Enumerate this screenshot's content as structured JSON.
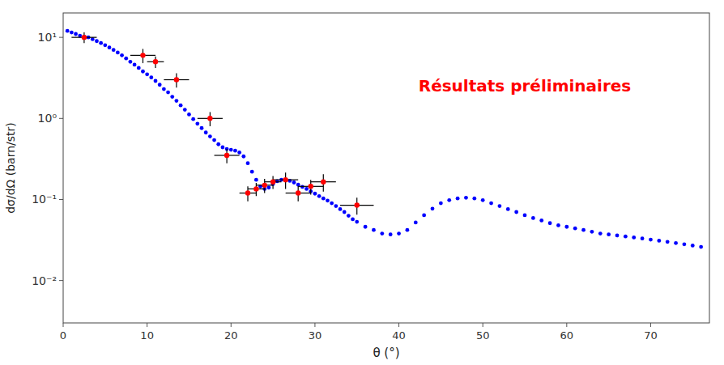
{
  "chart_data": {
    "type": "scatter",
    "xlabel": "θ (°)",
    "ylabel": "dσ/dΩ (barn/str)",
    "log": "y",
    "grid": false,
    "xlim": [
      0,
      77
    ],
    "ylim": [
      0.003,
      20
    ],
    "xticks": [
      0,
      10,
      20,
      30,
      40,
      50,
      60,
      70
    ],
    "yticks": [
      {
        "value": 0.01,
        "label": "10⁻²"
      },
      {
        "value": 0.1,
        "label": "10⁻¹"
      },
      {
        "value": 1,
        "label": "10⁰"
      },
      {
        "value": 10,
        "label": "10¹"
      }
    ],
    "annotations": [
      {
        "text": "Résultats préliminaires",
        "x": 55,
        "y": 2.5,
        "color": "#ff0000"
      }
    ],
    "series": [
      {
        "color": "blue",
        "marker": "circle",
        "x": [
          0.5,
          1.0,
          1.5,
          2.0,
          2.5,
          3.0,
          3.5,
          4.0,
          4.5,
          5.0,
          5.5,
          6.0,
          6.5,
          7.0,
          7.5,
          8.0,
          8.5,
          9.0,
          9.5,
          10.0,
          10.5,
          11.0,
          11.5,
          12.0,
          12.5,
          13.0,
          13.5,
          14.0,
          14.5,
          15.0,
          15.5,
          16.0,
          16.5,
          17.0,
          17.5,
          18.0,
          18.5,
          19.0,
          19.5,
          20.0,
          20.5,
          21.0,
          21.5,
          22.0,
          22.5,
          23.0,
          23.5,
          24.0,
          24.5,
          25.0,
          25.5,
          26.0,
          26.5,
          27.0,
          27.5,
          28.0,
          28.5,
          29.0,
          29.5,
          30.0,
          30.5,
          31.0,
          31.5,
          32.0,
          32.5,
          33.0,
          33.5,
          34.0,
          34.5,
          35.0,
          36.0,
          37.0,
          38.0,
          39.0,
          40.0,
          41.0,
          42.0,
          43.0,
          44.0,
          45.0,
          46.0,
          47.0,
          48.0,
          49.0,
          50.0,
          51.0,
          52.0,
          53.0,
          54.0,
          55.0,
          56.0,
          57.0,
          58.0,
          59.0,
          60.0,
          61.0,
          62.0,
          63.0,
          64.0,
          65.0,
          66.0,
          67.0,
          68.0,
          69.0,
          70.0,
          71.0,
          72.0,
          73.0,
          74.0,
          75.0,
          76.0
        ],
        "values": [
          12.0,
          11.5,
          11.0,
          10.5,
          10.2,
          10.0,
          9.5,
          9.0,
          8.5,
          8.0,
          7.5,
          7.0,
          6.5,
          6.0,
          5.5,
          5.0,
          4.6,
          4.2,
          3.8,
          3.5,
          3.2,
          2.9,
          2.6,
          2.3,
          2.1,
          1.85,
          1.65,
          1.45,
          1.28,
          1.12,
          0.98,
          0.86,
          0.76,
          0.67,
          0.6,
          0.54,
          0.48,
          0.44,
          0.42,
          0.41,
          0.4,
          0.38,
          0.34,
          0.28,
          0.22,
          0.175,
          0.145,
          0.135,
          0.14,
          0.155,
          0.168,
          0.175,
          0.175,
          0.17,
          0.162,
          0.152,
          0.143,
          0.135,
          0.126,
          0.118,
          0.11,
          0.103,
          0.097,
          0.09,
          0.083,
          0.076,
          0.07,
          0.063,
          0.057,
          0.053,
          0.046,
          0.042,
          0.038,
          0.037,
          0.038,
          0.042,
          0.052,
          0.064,
          0.077,
          0.09,
          0.098,
          0.103,
          0.105,
          0.103,
          0.098,
          0.09,
          0.083,
          0.076,
          0.07,
          0.064,
          0.059,
          0.055,
          0.051,
          0.048,
          0.046,
          0.044,
          0.042,
          0.04,
          0.038,
          0.037,
          0.036,
          0.035,
          0.034,
          0.033,
          0.032,
          0.031,
          0.03,
          0.029,
          0.028,
          0.027,
          0.026
        ]
      },
      {
        "color": "red",
        "marker": "circle",
        "x": [
          2.5,
          9.5,
          11.0,
          13.5,
          17.5,
          19.5,
          22.0,
          23.0,
          24.0,
          25.0,
          26.5,
          28.0,
          29.5,
          31.0,
          35.0
        ],
        "values": [
          10.0,
          6.0,
          5.0,
          3.0,
          1.0,
          0.35,
          0.12,
          0.135,
          0.15,
          0.165,
          0.175,
          0.12,
          0.145,
          0.165,
          0.085
        ],
        "xerr": [
          1.5,
          1.5,
          1.0,
          1.5,
          1.5,
          1.5,
          1.0,
          1.0,
          1.0,
          1.0,
          1.5,
          1.5,
          1.5,
          1.5,
          2.0
        ],
        "yerr_lo": [
          1.5,
          1.2,
          0.8,
          0.6,
          0.2,
          0.07,
          0.025,
          0.025,
          0.03,
          0.03,
          0.04,
          0.025,
          0.03,
          0.04,
          0.02
        ],
        "yerr_hi": [
          1.5,
          1.2,
          0.8,
          0.6,
          0.2,
          0.07,
          0.025,
          0.025,
          0.03,
          0.03,
          0.04,
          0.025,
          0.03,
          0.04,
          0.02
        ]
      }
    ]
  }
}
